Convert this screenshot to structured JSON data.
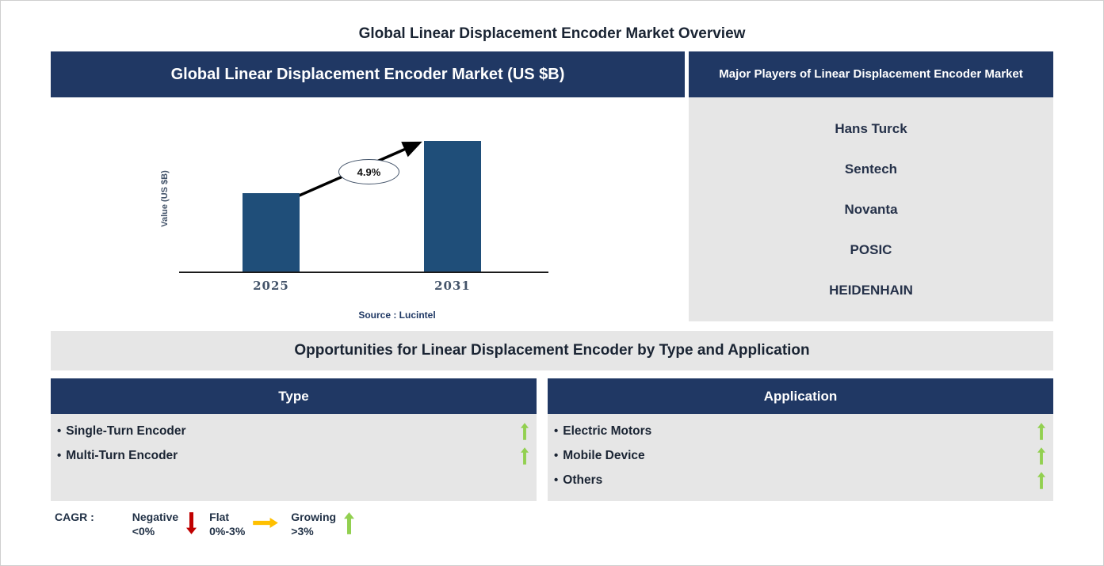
{
  "page_title": "Global Linear Displacement Encoder Market Overview",
  "market_chart": {
    "header": "Global Linear Displacement Encoder Market (US $B)",
    "source": "Source : Lucintel",
    "chart_data": {
      "type": "bar",
      "categories": [
        "2025",
        "2031"
      ],
      "values": [
        1.0,
        1.66
      ],
      "values_note": "relative bar heights; y-axis shows no numeric ticks",
      "title": "Global Linear Displacement Encoder Market (US $B)",
      "xlabel": "",
      "ylabel": "Value (US $B)",
      "grid": false,
      "bar_color": "#1F4E79",
      "cagr_label": "4.9%",
      "annotation": "CAGR 4.9% arrow from 2025 bar to 2031 bar"
    }
  },
  "major_players": {
    "header": "Major Players of Linear Displacement Encoder Market",
    "companies": [
      "Hans Turck",
      "Sentech",
      "Novanta",
      "POSIC",
      "HEIDENHAIN"
    ]
  },
  "opportunities": {
    "title": "Opportunities for Linear Displacement Encoder by Type and Application",
    "bullet": "•",
    "type": {
      "header": "Type",
      "items": [
        {
          "label": "Single-Turn Encoder",
          "trend": "growing"
        },
        {
          "label": "Multi-Turn Encoder",
          "trend": "growing"
        }
      ]
    },
    "application": {
      "header": "Application",
      "items": [
        {
          "label": "Electric Motors",
          "trend": "growing"
        },
        {
          "label": "Mobile Device",
          "trend": "growing"
        },
        {
          "label": "Others",
          "trend": "growing"
        }
      ]
    }
  },
  "legend": {
    "prefix": "CAGR :",
    "items": [
      {
        "label": "Negative",
        "range": "<0%",
        "icon": "down-arrow",
        "color": "#C00000"
      },
      {
        "label": "Flat",
        "range": "0%-3%",
        "icon": "right-arrow",
        "color": "#FFC000"
      },
      {
        "label": "Growing",
        "range": ">3%",
        "icon": "up-arrow",
        "color": "#92D050"
      }
    ]
  },
  "colors": {
    "header_navy": "#203864",
    "bar_blue": "#1F4E79",
    "panel_gray": "#E6E6E6",
    "growing_green": "#92D050",
    "flat_amber": "#FFC000",
    "negative_red": "#C00000",
    "axis_text": "#44546A",
    "source_text": "#1F3864"
  }
}
